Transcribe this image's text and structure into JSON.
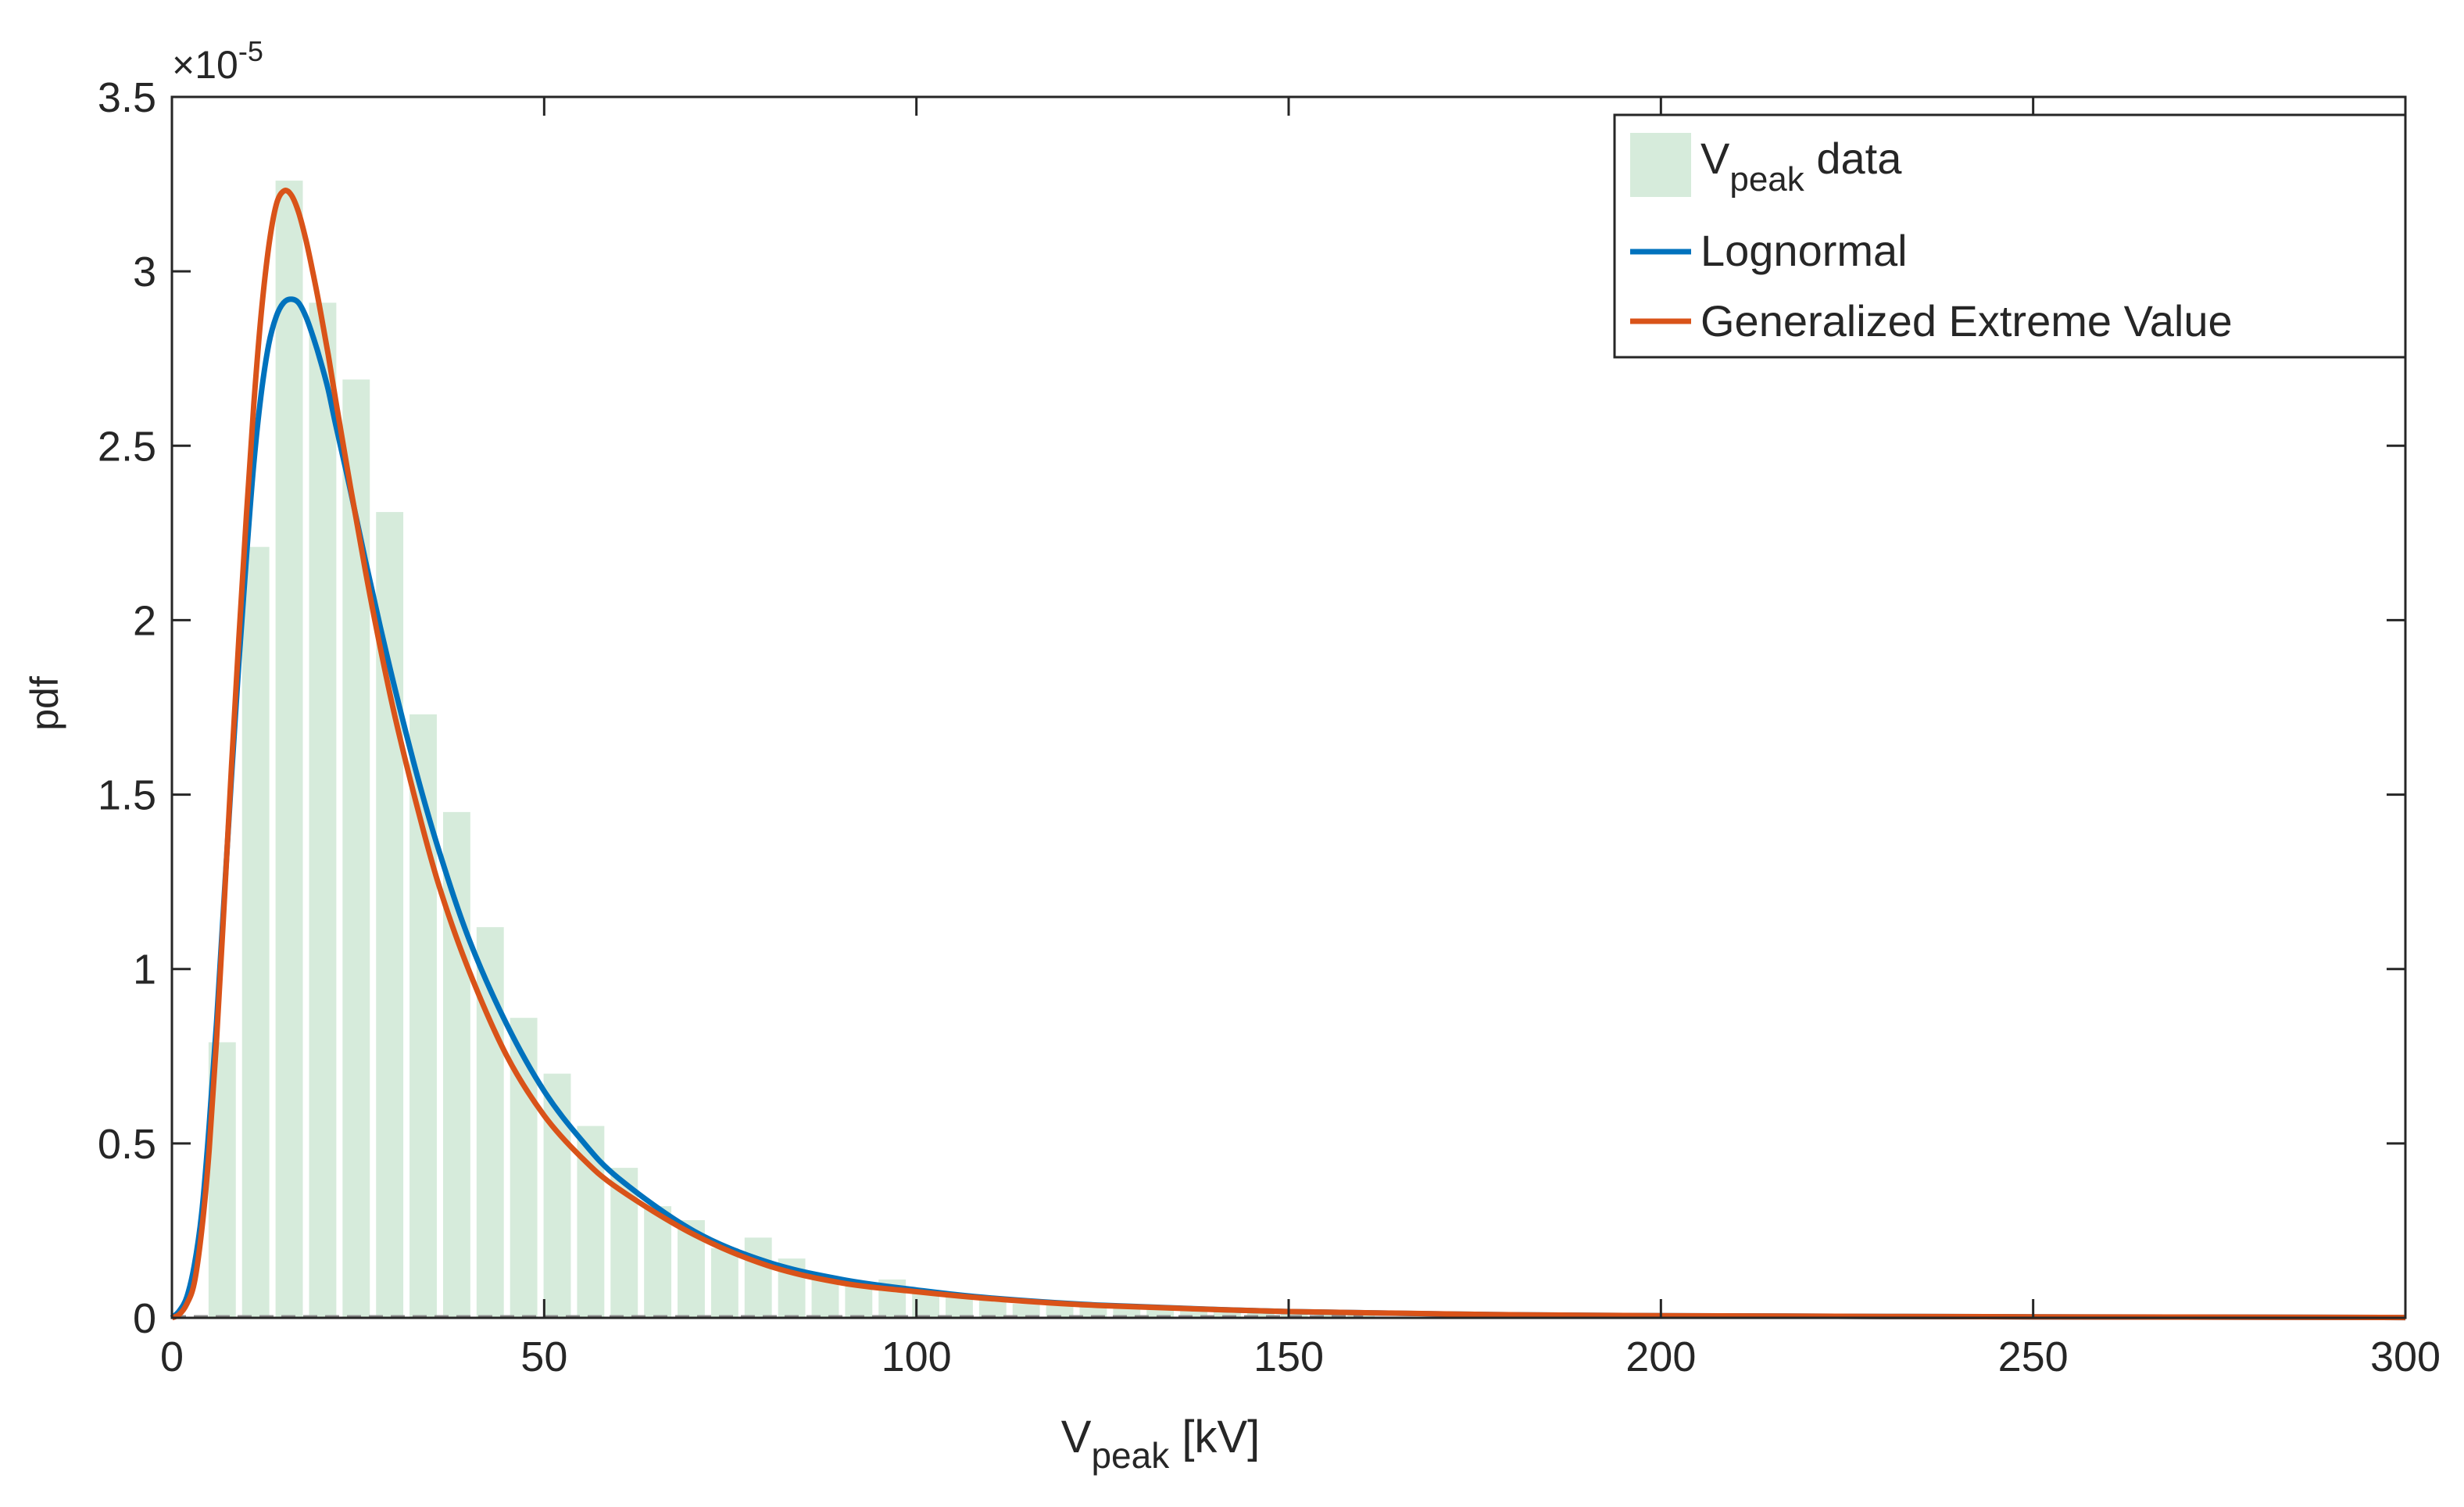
{
  "chart_data": {
    "type": "bar",
    "title": "",
    "xlabel": {
      "main": "V",
      "sub": "peak",
      "suffix": " [kV]"
    },
    "ylabel": "pdf",
    "y_exponent": {
      "base": "×10",
      "exp": "-5"
    },
    "xlim": [
      0,
      300
    ],
    "ylim": [
      0,
      3.5
    ],
    "xticks": [
      0,
      50,
      100,
      150,
      200,
      250,
      300
    ],
    "xtick_labels": [
      "0",
      "50",
      "100",
      "150",
      "200",
      "250",
      "300"
    ],
    "yticks": [
      0,
      0.5,
      1,
      1.5,
      2,
      2.5,
      3,
      3.5
    ],
    "ytick_labels": [
      "0",
      "0.5",
      "1",
      "1.5",
      "2",
      "2.5",
      "3",
      "3.5"
    ],
    "grid": false,
    "legend_position": "top-right",
    "legend": [
      {
        "main": "V",
        "sub": "peak",
        "suffix": " data",
        "kind": "patch"
      },
      {
        "main": "Lognormal",
        "sub": "",
        "suffix": "",
        "kind": "line"
      },
      {
        "main": "Generalized Extreme Value",
        "sub": "",
        "suffix": "",
        "kind": "line"
      }
    ],
    "colors": {
      "histogram": "#d6ebdb",
      "lognormal": "#0072bd",
      "gev": "#d95319",
      "axes": "#262626"
    },
    "histogram": {
      "bin_width": 4.5,
      "bins": [
        {
          "x": 6.75,
          "y": 0.79
        },
        {
          "x": 11.25,
          "y": 2.21
        },
        {
          "x": 15.75,
          "y": 3.26
        },
        {
          "x": 20.25,
          "y": 2.91
        },
        {
          "x": 24.75,
          "y": 2.69
        },
        {
          "x": 29.25,
          "y": 2.31
        },
        {
          "x": 33.75,
          "y": 1.73
        },
        {
          "x": 38.25,
          "y": 1.45
        },
        {
          "x": 42.75,
          "y": 1.12
        },
        {
          "x": 47.25,
          "y": 0.86
        },
        {
          "x": 51.75,
          "y": 0.7
        },
        {
          "x": 56.25,
          "y": 0.55
        },
        {
          "x": 60.75,
          "y": 0.43
        },
        {
          "x": 65.25,
          "y": 0.32
        },
        {
          "x": 69.75,
          "y": 0.28
        },
        {
          "x": 74.25,
          "y": 0.2
        },
        {
          "x": 78.75,
          "y": 0.23
        },
        {
          "x": 83.25,
          "y": 0.17
        },
        {
          "x": 87.75,
          "y": 0.12
        },
        {
          "x": 92.25,
          "y": 0.1
        },
        {
          "x": 96.75,
          "y": 0.11
        },
        {
          "x": 101.25,
          "y": 0.08
        },
        {
          "x": 105.75,
          "y": 0.06
        },
        {
          "x": 110.25,
          "y": 0.05
        },
        {
          "x": 114.75,
          "y": 0.04
        },
        {
          "x": 119.25,
          "y": 0.04
        },
        {
          "x": 123.75,
          "y": 0.04
        },
        {
          "x": 128.25,
          "y": 0.03
        },
        {
          "x": 132.75,
          "y": 0.03
        },
        {
          "x": 137.25,
          "y": 0.02
        },
        {
          "x": 141.75,
          "y": 0.02
        },
        {
          "x": 146.25,
          "y": 0.02
        },
        {
          "x": 150.75,
          "y": 0.015
        },
        {
          "x": 155.25,
          "y": 0.012
        },
        {
          "x": 159.75,
          "y": 0.01
        }
      ]
    },
    "series": [
      {
        "name": "Lognormal",
        "x": [
          0,
          1,
          2,
          3,
          4,
          5,
          6,
          7,
          8,
          9,
          10,
          11,
          12,
          13,
          14,
          15,
          16,
          17,
          18,
          19,
          20,
          21,
          22,
          24,
          26,
          28,
          30,
          33,
          36,
          40,
          45,
          50,
          55,
          60,
          70,
          80,
          90,
          100,
          110,
          125,
          150,
          175,
          200,
          250,
          300
        ],
        "values": [
          0,
          0.02,
          0.06,
          0.15,
          0.3,
          0.55,
          0.85,
          1.2,
          1.55,
          1.88,
          2.18,
          2.45,
          2.65,
          2.79,
          2.87,
          2.91,
          2.92,
          2.91,
          2.87,
          2.81,
          2.74,
          2.66,
          2.56,
          2.37,
          2.17,
          1.98,
          1.8,
          1.55,
          1.33,
          1.08,
          0.84,
          0.65,
          0.51,
          0.4,
          0.25,
          0.16,
          0.11,
          0.08,
          0.057,
          0.036,
          0.018,
          0.01,
          0.006,
          0.003,
          0.001
        ]
      },
      {
        "name": "Generalized Extreme Value",
        "x": [
          0,
          1,
          2,
          3,
          4,
          5,
          6,
          7,
          8,
          9,
          10,
          11,
          12,
          13,
          14,
          15,
          16,
          17,
          18,
          19,
          20,
          21,
          22,
          24,
          26,
          28,
          30,
          33,
          36,
          40,
          45,
          50,
          55,
          60,
          70,
          80,
          90,
          100,
          110,
          125,
          150,
          175,
          200,
          250,
          300
        ],
        "values": [
          0,
          0.01,
          0.04,
          0.1,
          0.25,
          0.48,
          0.8,
          1.18,
          1.58,
          1.95,
          2.3,
          2.62,
          2.88,
          3.07,
          3.19,
          3.23,
          3.22,
          3.17,
          3.09,
          2.99,
          2.88,
          2.76,
          2.63,
          2.38,
          2.14,
          1.92,
          1.72,
          1.46,
          1.23,
          0.99,
          0.75,
          0.58,
          0.46,
          0.37,
          0.24,
          0.15,
          0.1,
          0.075,
          0.055,
          0.035,
          0.018,
          0.01,
          0.006,
          0.003,
          0.001
        ]
      }
    ]
  }
}
